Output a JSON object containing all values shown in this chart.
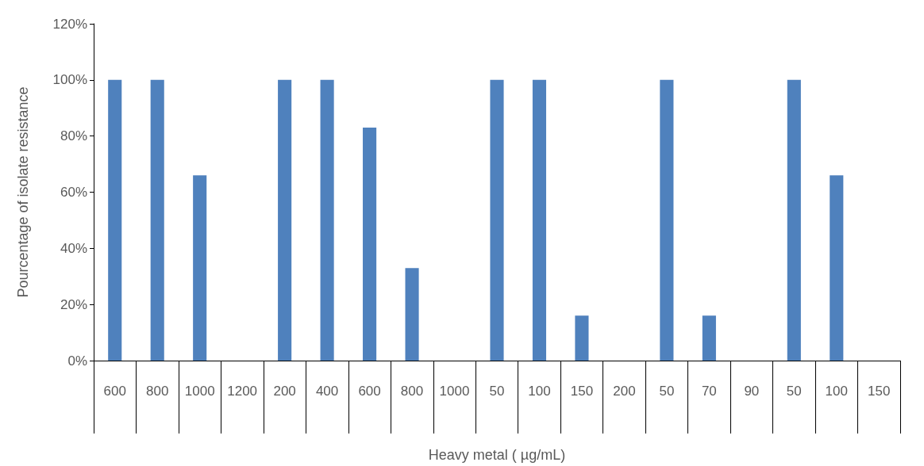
{
  "chart_data": {
    "type": "bar",
    "xlabel": "Heavy metal ( µg/mL)",
    "ylabel": "Pourcentage of isolate resistance",
    "categories": [
      "600",
      "800",
      "1000",
      "1200",
      "200",
      "400",
      "600",
      "800",
      "1000",
      "50",
      "100",
      "150",
      "200",
      "50",
      "70",
      "90",
      "50",
      "100",
      "150"
    ],
    "values": [
      100,
      100,
      66,
      0,
      100,
      100,
      83,
      33,
      0,
      100,
      100,
      16,
      0,
      100,
      16,
      0,
      100,
      66,
      0
    ],
    "color": "#4f81bd",
    "ylim": [
      0,
      120
    ],
    "yticks": [
      {
        "value": 0,
        "label": "0%"
      },
      {
        "value": 20,
        "label": "20%"
      },
      {
        "value": 40,
        "label": "40%"
      },
      {
        "value": 60,
        "label": "60%"
      },
      {
        "value": 80,
        "label": "80%"
      },
      {
        "value": 100,
        "label": "100%"
      },
      {
        "value": 120,
        "label": "120%"
      }
    ],
    "grid": false
  }
}
